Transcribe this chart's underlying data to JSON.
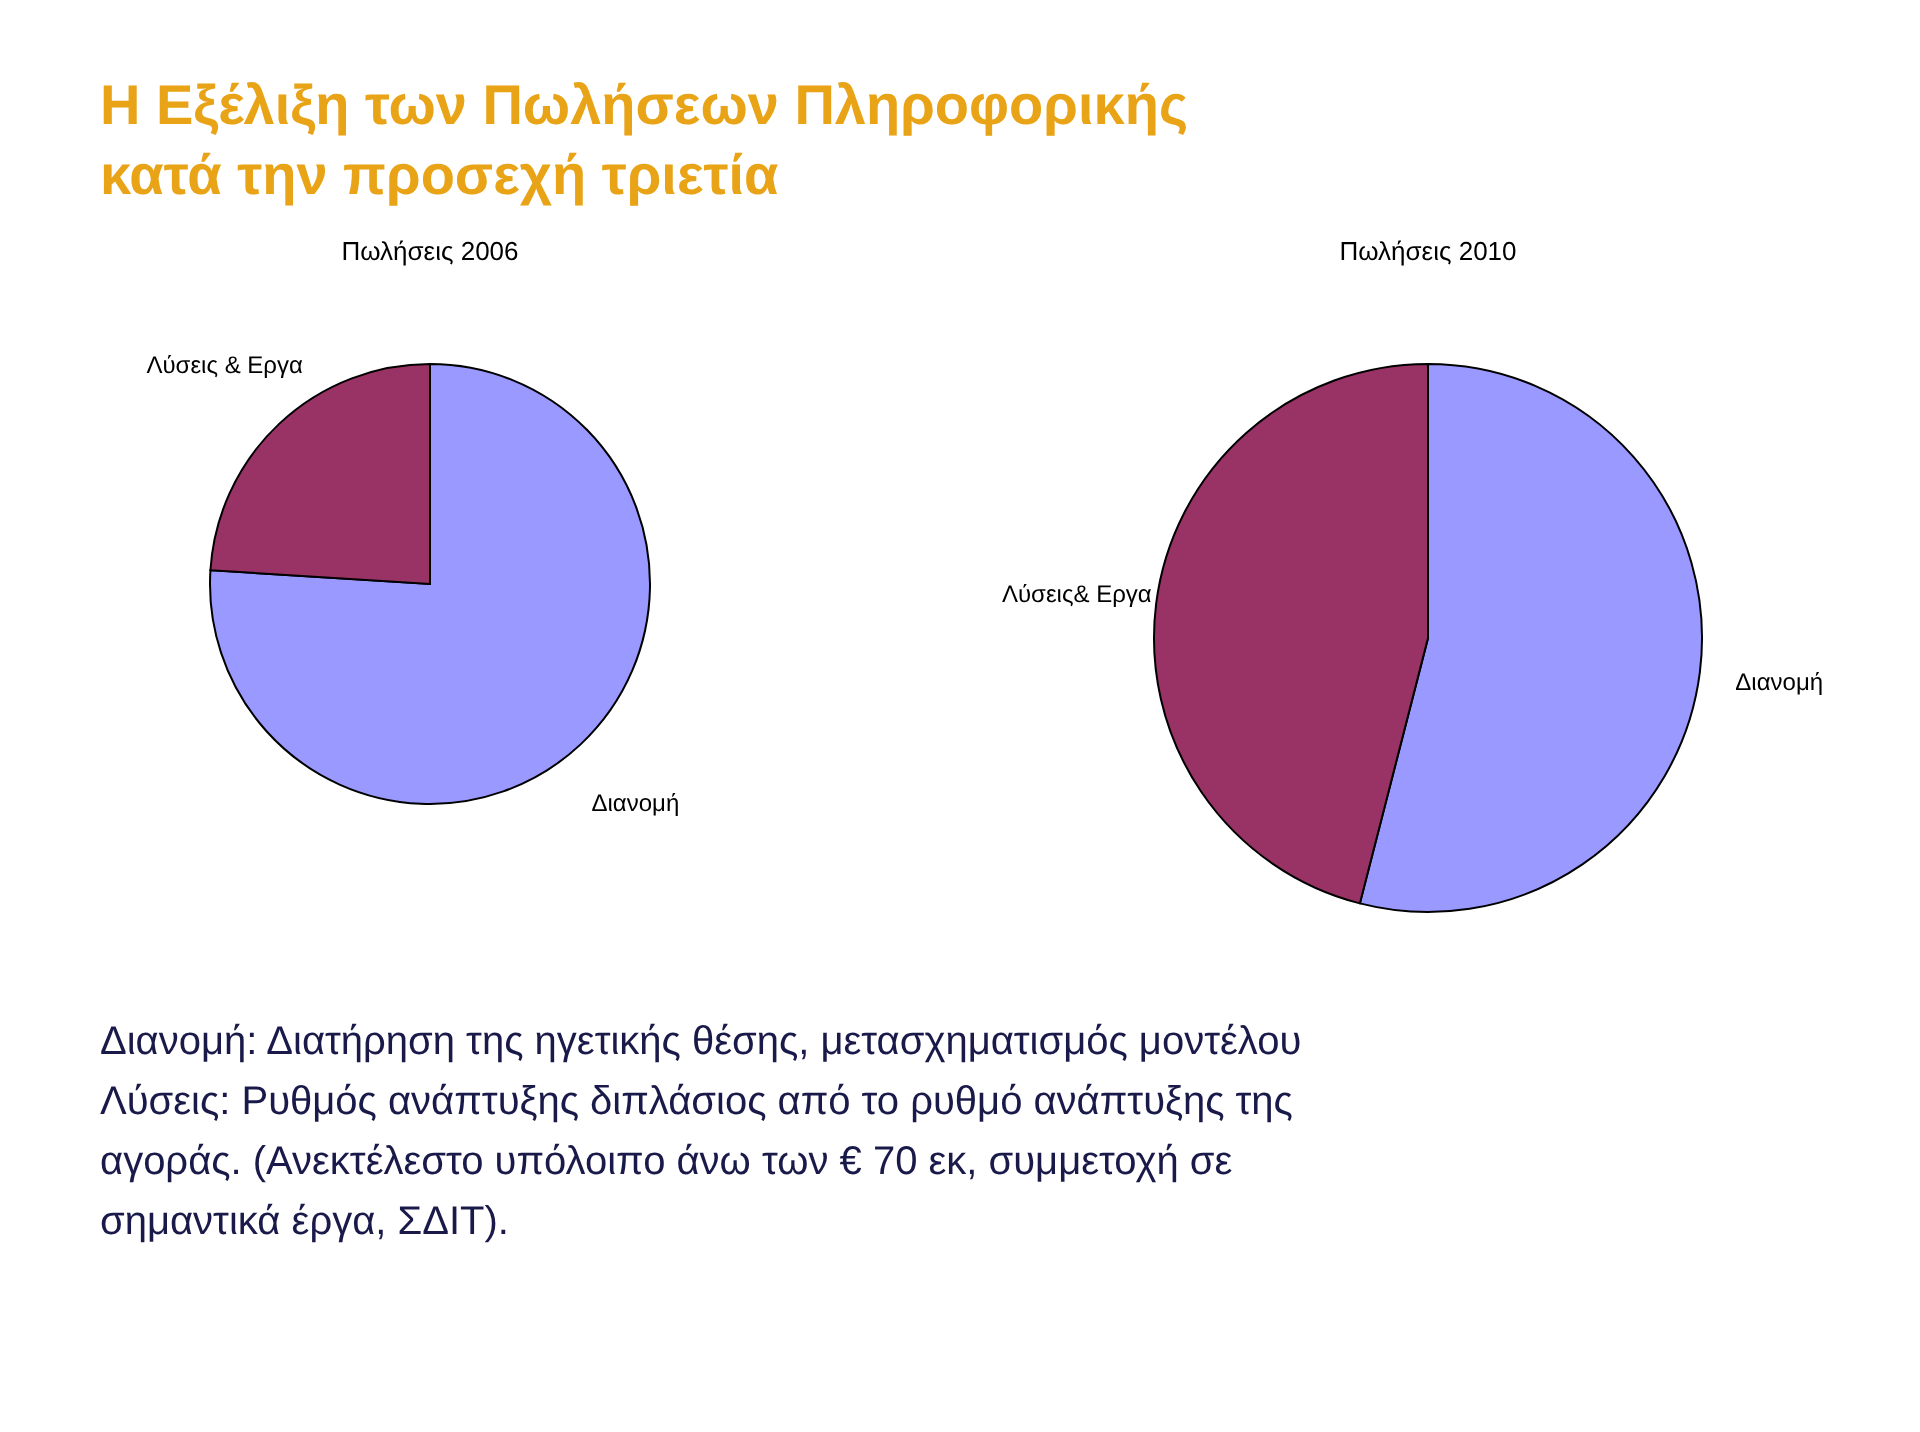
{
  "chart_data": [
    {
      "type": "pie",
      "title": "Πωλήσεις 2006",
      "categories": [
        "Διανομή",
        "Λύσεις & Εργα"
      ],
      "values": [
        76,
        24
      ],
      "colors": [
        "#9999ff",
        "#993366"
      ],
      "legend": false,
      "annotations": [
        "Η Εξέλιξη των Πωλήσεων Πληροφορικής κατά την προσεχή τριετία"
      ]
    },
    {
      "type": "pie",
      "title": "Πωλήσεις 2010",
      "categories": [
        "Διανομή",
        "Λύσεις& Εργα"
      ],
      "values": [
        54,
        46
      ],
      "colors": [
        "#9999ff",
        "#993366"
      ],
      "legend": false,
      "annotations": [
        "Διανομή: Διατήρηση της ηγετικής θέσης, μετασχηματισμός μοντέλου",
        "Λύσεις: Ρυθμός ανάπτυξης διπλάσιος από το ρυθμό ανάπτυξης της αγοράς. (Ανεκτέλεστο υπόλοιπο άνω των € 70 εκ, συμμετοχή σε σημαντικά έργα, ΣΔΙΤ)."
      ]
    }
  ]
}
